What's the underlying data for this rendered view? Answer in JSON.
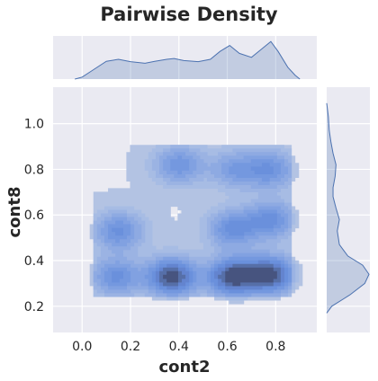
{
  "chart_data": {
    "type": "jointplot-kde",
    "title": "Pairwise Density",
    "xlabel": "cont2",
    "ylabel": "cont8",
    "xlim": [
      -0.12,
      0.97
    ],
    "ylim": [
      0.085,
      1.16
    ],
    "xticks": [
      "0.0",
      "0.2",
      "0.4",
      "0.6",
      "0.8"
    ],
    "yticks": [
      "0.2",
      "0.4",
      "0.6",
      "0.8",
      "1.0"
    ],
    "grid": true,
    "fill_color": "#4c72b0",
    "background": "#eaeaf2",
    "density_peaks": [
      {
        "x": 0.37,
        "y": 0.33,
        "density": 1.0
      },
      {
        "x": 0.62,
        "y": 0.33,
        "density": 1.0
      },
      {
        "x": 0.78,
        "y": 0.34,
        "density": 0.95
      },
      {
        "x": 0.14,
        "y": 0.33,
        "density": 0.6
      },
      {
        "x": 0.15,
        "y": 0.53,
        "density": 0.6
      },
      {
        "x": 0.62,
        "y": 0.54,
        "density": 0.6
      },
      {
        "x": 0.78,
        "y": 0.58,
        "density": 0.6
      },
      {
        "x": 0.78,
        "y": 0.8,
        "density": 0.55
      },
      {
        "x": 0.4,
        "y": 0.82,
        "density": 0.55
      },
      {
        "x": 0.63,
        "y": 0.8,
        "density": 0.45
      }
    ],
    "x_marginal": [
      {
        "x": -0.03,
        "d": 0.0
      },
      {
        "x": 0.0,
        "d": 0.05
      },
      {
        "x": 0.05,
        "d": 0.25
      },
      {
        "x": 0.1,
        "d": 0.45
      },
      {
        "x": 0.15,
        "d": 0.5
      },
      {
        "x": 0.2,
        "d": 0.44
      },
      {
        "x": 0.26,
        "d": 0.4
      },
      {
        "x": 0.3,
        "d": 0.45
      },
      {
        "x": 0.35,
        "d": 0.5
      },
      {
        "x": 0.38,
        "d": 0.52
      },
      {
        "x": 0.42,
        "d": 0.47
      },
      {
        "x": 0.48,
        "d": 0.44
      },
      {
        "x": 0.53,
        "d": 0.5
      },
      {
        "x": 0.57,
        "d": 0.7
      },
      {
        "x": 0.61,
        "d": 0.85
      },
      {
        "x": 0.65,
        "d": 0.65
      },
      {
        "x": 0.7,
        "d": 0.55
      },
      {
        "x": 0.74,
        "d": 0.75
      },
      {
        "x": 0.78,
        "d": 0.95
      },
      {
        "x": 0.81,
        "d": 0.7
      },
      {
        "x": 0.85,
        "d": 0.3
      },
      {
        "x": 0.88,
        "d": 0.1
      },
      {
        "x": 0.9,
        "d": 0.0
      }
    ],
    "y_marginal": [
      {
        "y": 0.17,
        "d": 0.0
      },
      {
        "y": 0.2,
        "d": 0.12
      },
      {
        "y": 0.25,
        "d": 0.55
      },
      {
        "y": 0.3,
        "d": 0.9
      },
      {
        "y": 0.34,
        "d": 1.0
      },
      {
        "y": 0.38,
        "d": 0.85
      },
      {
        "y": 0.42,
        "d": 0.5
      },
      {
        "y": 0.47,
        "d": 0.3
      },
      {
        "y": 0.53,
        "d": 0.25
      },
      {
        "y": 0.58,
        "d": 0.3
      },
      {
        "y": 0.63,
        "d": 0.22
      },
      {
        "y": 0.68,
        "d": 0.15
      },
      {
        "y": 0.72,
        "d": 0.15
      },
      {
        "y": 0.77,
        "d": 0.2
      },
      {
        "y": 0.82,
        "d": 0.22
      },
      {
        "y": 0.87,
        "d": 0.15
      },
      {
        "y": 0.92,
        "d": 0.1
      },
      {
        "y": 0.97,
        "d": 0.06
      },
      {
        "y": 1.03,
        "d": 0.04
      },
      {
        "y": 1.06,
        "d": 0.02
      },
      {
        "y": 1.09,
        "d": 0.0
      }
    ]
  }
}
